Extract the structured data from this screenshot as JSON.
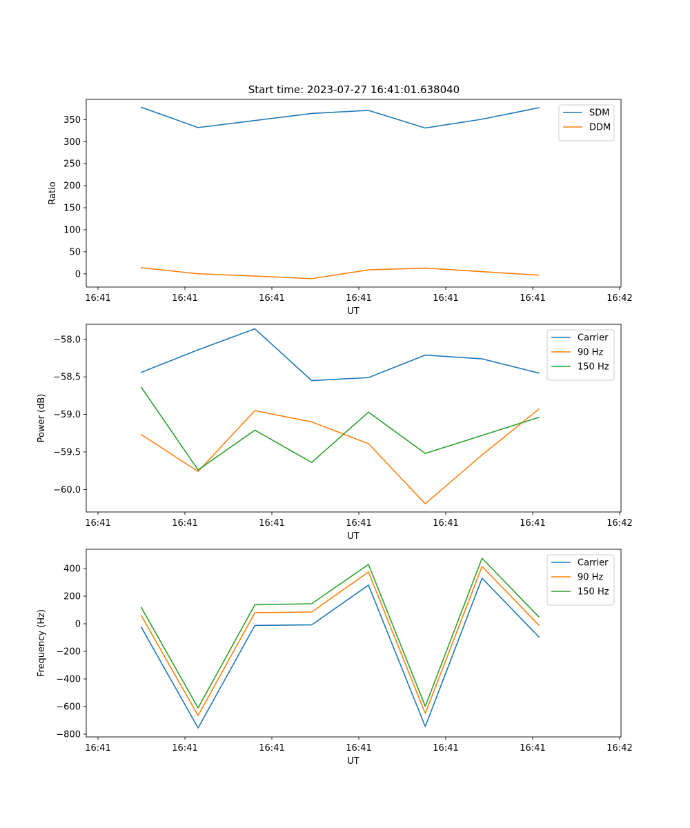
{
  "title": "Start time: 2023-07-27 16:41:01.638040",
  "colors": {
    "series_1": "#1f77b4",
    "series_2": "#ff7f0e",
    "series_3": "#2ca02c",
    "axis": "#000000",
    "legend_border": "#cccccc"
  },
  "chart_data": [
    {
      "type": "line",
      "xlabel": "UT",
      "ylabel": "Ratio",
      "x_tick_labels": [
        "16:41",
        "16:41",
        "16:41",
        "16:41",
        "16:41",
        "16:41",
        "16:42"
      ],
      "x": [
        0.5,
        1.15,
        1.8,
        2.45,
        3.1,
        3.75,
        4.4,
        5.05
      ],
      "xlim": [
        -0.13,
        5.99
      ],
      "ylim": [
        -30,
        396
      ],
      "yticks": [
        0,
        50,
        100,
        150,
        200,
        250,
        300,
        350
      ],
      "legend": "top-right",
      "series": [
        {
          "name": "SDM",
          "values": [
            378,
            332,
            348,
            364,
            371,
            331,
            351,
            377
          ]
        },
        {
          "name": "DDM",
          "values": [
            14,
            0,
            -5,
            -11,
            9,
            13,
            5,
            -3
          ]
        }
      ]
    },
    {
      "type": "line",
      "xlabel": "UT",
      "ylabel": "Power (dB)",
      "x_tick_labels": [
        "16:41",
        "16:41",
        "16:41",
        "16:41",
        "16:41",
        "16:41",
        "16:42"
      ],
      "x": [
        0.5,
        1.15,
        1.8,
        2.45,
        3.1,
        3.75,
        4.4,
        5.05
      ],
      "xlim": [
        -0.13,
        5.99
      ],
      "ylim": [
        -60.3,
        -57.8
      ],
      "yticks": [
        -60.0,
        -59.5,
        -59.0,
        -58.5,
        -58.0
      ],
      "ytick_labels": [
        "−60.0",
        "−59.5",
        "−59.0",
        "−58.5",
        "−58.0"
      ],
      "legend": "top-right",
      "series": [
        {
          "name": "Carrier",
          "values": [
            -58.44,
            -58.14,
            -57.86,
            -58.55,
            -58.51,
            -58.21,
            -58.26,
            -58.45
          ]
        },
        {
          "name": "90 Hz",
          "values": [
            -59.27,
            -59.76,
            -58.95,
            -59.1,
            -59.39,
            -60.19,
            -59.54,
            -58.93
          ]
        },
        {
          "name": "150 Hz",
          "values": [
            -58.64,
            -59.74,
            -59.21,
            -59.64,
            -58.97,
            -59.52,
            -59.28,
            -59.04
          ]
        }
      ]
    },
    {
      "type": "line",
      "xlabel": "UT",
      "ylabel": "Frequency (Hz)",
      "x_tick_labels": [
        "16:41",
        "16:41",
        "16:41",
        "16:41",
        "16:41",
        "16:41",
        "16:42"
      ],
      "x": [
        0.5,
        1.15,
        1.8,
        2.45,
        3.1,
        3.75,
        4.4,
        5.05
      ],
      "xlim": [
        -0.13,
        5.99
      ],
      "ylim": [
        -820,
        540
      ],
      "yticks": [
        -800,
        -600,
        -400,
        -200,
        0,
        200,
        400
      ],
      "ytick_labels": [
        "−800",
        "−600",
        "−400",
        "−200",
        "0",
        "200",
        "400"
      ],
      "legend": "top-right",
      "series": [
        {
          "name": "Carrier",
          "values": [
            -25,
            -755,
            -12,
            -8,
            280,
            -745,
            330,
            -95
          ]
        },
        {
          "name": "90 Hz",
          "values": [
            60,
            -665,
            80,
            85,
            375,
            -650,
            415,
            -10
          ]
        },
        {
          "name": "150 Hz",
          "values": [
            118,
            -610,
            138,
            145,
            430,
            -598,
            475,
            50
          ]
        }
      ]
    }
  ]
}
